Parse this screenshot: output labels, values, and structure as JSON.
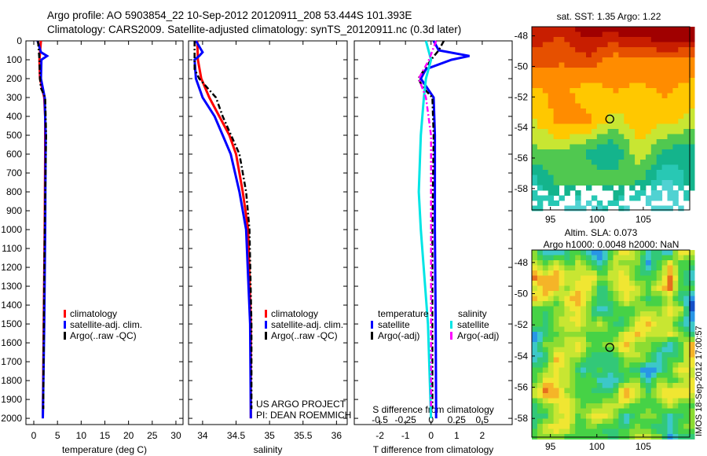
{
  "title_line1": "Argo profile: AO 5903854_22 10-Sep-2012 20120911_208 53.444S 101.393E",
  "title_line2": "Climatology: CARS2009. Satellite-adjusted climatology: synTS_20120911.nc (0.3d later)",
  "credit": "US ARGO PROJECT",
  "pi": "PI: DEAN ROEMMICH",
  "stamp": "IMOS 18-Sep-2012 17:00:57",
  "colors": {
    "climatology": "#ff0000",
    "satellite": "#0000ff",
    "argo": "#000000",
    "sal_satellite": "#00e5e5",
    "sal_argo": "#ff00ff"
  },
  "chart_data": [
    {
      "type": "line",
      "xlabel": "temperature (deg C)",
      "ylabel": "",
      "xlim": [
        -1.66,
        31.5
      ],
      "ylim": [
        2033,
        0
      ],
      "xticks": [
        0,
        5,
        10,
        15,
        20,
        25,
        30
      ],
      "yticks": [
        0,
        100,
        200,
        300,
        400,
        500,
        600,
        700,
        800,
        900,
        1000,
        1100,
        1200,
        1300,
        1400,
        1500,
        1600,
        1700,
        1800,
        1900,
        2000
      ],
      "legend": [
        "climatology",
        "satellite-adj. clim.",
        "Argo(..raw -QC)"
      ],
      "series": [
        {
          "name": "climatology",
          "color": "#ff0000",
          "depth": [
            0,
            100,
            200,
            300,
            400,
            600,
            1000,
            1500,
            2000
          ],
          "values": [
            1.5,
            1.2,
            1.3,
            2.2,
            2.4,
            2.4,
            2.3,
            2.1,
            1.9
          ]
        },
        {
          "name": "satellite-adj. clim.",
          "color": "#0000ff",
          "depth": [
            0,
            60,
            80,
            100,
            200,
            300,
            500,
            1000,
            1500,
            2000
          ],
          "values": [
            0.8,
            1.5,
            2.8,
            1.6,
            1.5,
            2.3,
            2.5,
            2.4,
            2.2,
            1.9
          ]
        },
        {
          "name": "Argo(..raw -QC)",
          "color": "#000000",
          "dash": true,
          "depth": [
            0,
            100,
            200,
            250,
            300,
            500,
            1000,
            1500,
            1950
          ],
          "values": [
            0.9,
            1.2,
            1.3,
            1.5,
            2.4,
            2.6,
            2.3,
            2.1,
            2.0
          ]
        }
      ]
    },
    {
      "type": "line",
      "xlabel": "salinity",
      "xlim": [
        33.79,
        36.16
      ],
      "ylim": [
        2033,
        0
      ],
      "xticks": [
        34,
        34.5,
        35,
        35.5,
        36
      ],
      "legend": [
        "climatology",
        "satellite-adj. clim.",
        "Argo(..raw -QC)"
      ],
      "series": [
        {
          "name": "climatology",
          "color": "#ff0000",
          "depth": [
            0,
            100,
            200,
            300,
            400,
            500,
            600,
            800,
            1000,
            1500,
            2000
          ],
          "values": [
            33.92,
            33.93,
            33.98,
            34.1,
            34.25,
            34.4,
            34.5,
            34.6,
            34.68,
            34.72,
            34.72
          ]
        },
        {
          "name": "satellite-adj. clim.",
          "color": "#0000ff",
          "depth": [
            0,
            60,
            80,
            100,
            200,
            300,
            400,
            500,
            600,
            800,
            1000,
            1500,
            2000
          ],
          "values": [
            33.9,
            34.0,
            33.95,
            33.88,
            33.9,
            34.0,
            34.18,
            34.3,
            34.42,
            34.55,
            34.65,
            34.71,
            34.72
          ]
        },
        {
          "name": "Argo(..raw -QC)",
          "color": "#000000",
          "dash": true,
          "depth": [
            0,
            150,
            200,
            300,
            400,
            600,
            800,
            1000,
            1500,
            1950
          ],
          "values": [
            33.88,
            33.88,
            33.95,
            34.2,
            34.3,
            34.55,
            34.65,
            34.7,
            34.73,
            34.73
          ]
        }
      ]
    },
    {
      "type": "line",
      "xlabel": "T difference from climatology",
      "x2label": "S difference from climatology",
      "xlim": [
        -3.0,
        3.17
      ],
      "ylim": [
        2033,
        0
      ],
      "xticks": [
        -2,
        -1,
        0,
        1,
        2
      ],
      "x2ticks": [
        "-0.5",
        "-0.25",
        "0",
        "0.25",
        "0.5"
      ],
      "x2tick_values": [
        -0.5,
        -0.25,
        0,
        0.25,
        0.5
      ],
      "legend_groups": [
        {
          "title": "temperature",
          "entries": [
            "satellite",
            "Argo(-adj)"
          ]
        },
        {
          "title": "salinity",
          "entries": [
            "satellite",
            "Argo(-adj)"
          ]
        }
      ],
      "series": [
        {
          "name": "temperature satellite",
          "color": "#0000ff",
          "depth": [
            0,
            50,
            80,
            100,
            150,
            200,
            300,
            500,
            1000,
            1500,
            2000
          ],
          "values": [
            0.1,
            0.3,
            1.5,
            0.8,
            -0.2,
            -0.4,
            0.1,
            0.15,
            0.15,
            0.18,
            0.2
          ]
        },
        {
          "name": "temperature Argo(-adj)",
          "color": "#000000",
          "dash": true,
          "depth": [
            0,
            50,
            100,
            200,
            250,
            300,
            500,
            1000,
            1950
          ],
          "values": [
            0.5,
            0.3,
            0.0,
            -0.5,
            -0.3,
            0.05,
            0.1,
            0.05,
            0.05
          ]
        },
        {
          "name": "salinity satellite",
          "color": "#00e5e5",
          "salinity": true,
          "depth": [
            0,
            100,
            200,
            300,
            500,
            800,
            1000,
            1500,
            2000
          ],
          "values": [
            -0.05,
            0.0,
            -0.05,
            -0.07,
            -0.1,
            -0.12,
            -0.1,
            -0.03,
            0.0
          ]
        },
        {
          "name": "salinity Argo(-adj)",
          "color": "#ff00ff",
          "dash": true,
          "salinity": true,
          "depth": [
            0,
            100,
            200,
            300,
            500,
            1000,
            1950
          ],
          "values": [
            0.05,
            -0.02,
            -0.12,
            -0.05,
            0.0,
            0.0,
            0.0
          ]
        }
      ]
    },
    {
      "type": "heatmap",
      "title": "sat. SST: 1.35 Argo: 1.22",
      "xticks": [
        95,
        100,
        105
      ],
      "yticks": [
        -48,
        -50,
        -52,
        -54,
        -56,
        -58
      ],
      "xlim": [
        93,
        110
      ],
      "ylim": [
        -59.4,
        -47.4
      ],
      "marker": {
        "lon": 101.393,
        "lat": -53.444
      }
    },
    {
      "type": "heatmap",
      "title_line1": "Altim. SLA: 0.073",
      "title_line2": "Argo h1000: 0.0048 h2000: NaN",
      "xticks": [
        95,
        100,
        105
      ],
      "yticks": [
        -48,
        -50,
        -52,
        -54,
        -56,
        -58
      ],
      "xlim": [
        93,
        110
      ],
      "ylim": [
        -59.2,
        -47.2
      ],
      "marker": {
        "lon": 101.393,
        "lat": -53.444
      }
    }
  ]
}
